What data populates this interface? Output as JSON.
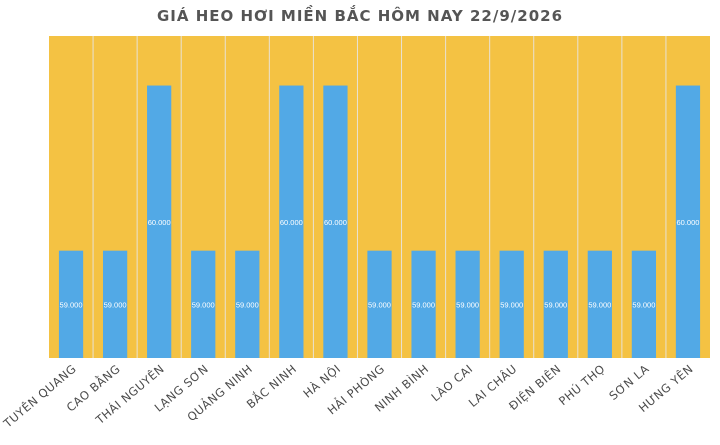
{
  "chart_data": {
    "type": "bar",
    "title": "GIÁ HEO HƠI MIỀN BẮC HÔM NAY 22/9/2026",
    "xlabel": "",
    "ylabel": "",
    "categories": [
      "TUYÊN QUANG",
      "CAO BẰNG",
      "THÁI NGUYÊN",
      "LẠNG SƠN",
      "QUẢNG NINH",
      "BẮC NINH",
      "HÀ NỘI",
      "HẢI PHÒNG",
      "NINH BÌNH",
      "LÀO CAI",
      "LAI CHÂU",
      "ĐIỆN BIÊN",
      "PHÚ THỌ",
      "SƠN LA",
      "HƯNG YÊN"
    ],
    "values": [
      59000,
      59000,
      60000,
      59000,
      59000,
      60000,
      60000,
      59000,
      59000,
      59000,
      59000,
      59000,
      59000,
      59000,
      60000
    ],
    "value_labels": [
      "59.000",
      "59.000",
      "60.000",
      "59.000",
      "59.000",
      "60.000",
      "60.000",
      "59.000",
      "59.000",
      "59.000",
      "59.000",
      "59.000",
      "59.000",
      "59.000",
      "60.000"
    ],
    "ylim": [
      58350,
      60300
    ],
    "grid": false,
    "legend": "none",
    "colors": {
      "plot_background": "#f4c243",
      "bar": "#52a9e6",
      "separator": "#e8e2d4",
      "label_text": "#4a4a4a",
      "title_text": "#555555",
      "value_text": "#ffffff"
    }
  }
}
